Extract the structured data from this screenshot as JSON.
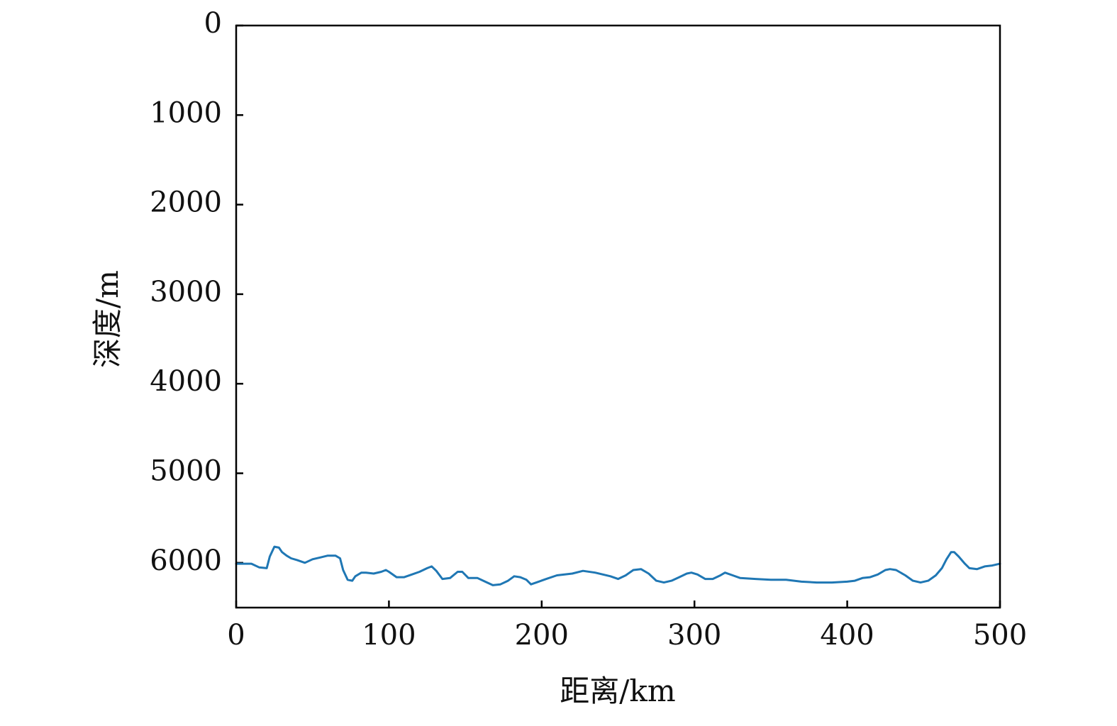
{
  "chart_data": {
    "type": "line",
    "title": "",
    "xlabel": "距离/km",
    "ylabel": "深度/m",
    "xlim": [
      0,
      500
    ],
    "ylim": [
      0,
      6500
    ],
    "y_inverted": true,
    "x_ticks": [
      0,
      100,
      200,
      300,
      400,
      500
    ],
    "x_tick_labels": [
      "0",
      "100",
      "200",
      "300",
      "400",
      "500"
    ],
    "y_ticks": [
      0,
      1000,
      2000,
      3000,
      4000,
      5000,
      6000
    ],
    "y_tick_labels": [
      "0",
      "1000",
      "2000",
      "3000",
      "4000",
      "5000",
      "6000"
    ],
    "grid": false,
    "legend": "none",
    "colors": {
      "series": "#1f77b4",
      "axes": "#000000"
    },
    "series": [
      {
        "x": [
          0,
          5,
          10,
          15,
          20,
          22,
          25,
          28,
          30,
          33,
          36,
          40,
          45,
          50,
          55,
          60,
          65,
          68,
          70,
          73,
          76,
          78,
          82,
          85,
          90,
          95,
          98,
          100,
          105,
          110,
          115,
          120,
          125,
          128,
          131,
          135,
          140,
          145,
          148,
          152,
          158,
          163,
          168,
          173,
          178,
          182,
          186,
          190,
          193,
          198,
          203,
          210,
          220,
          227,
          235,
          245,
          250,
          255,
          260,
          265,
          270,
          275,
          280,
          285,
          290,
          295,
          298,
          302,
          307,
          312,
          317,
          320,
          325,
          330,
          340,
          350,
          360,
          370,
          380,
          390,
          400,
          405,
          410,
          415,
          420,
          425,
          428,
          432,
          438,
          443,
          448,
          453,
          458,
          462,
          465,
          468,
          470,
          473,
          477,
          480,
          485,
          490,
          495,
          500
        ],
        "y": [
          6010,
          6010,
          6010,
          6050,
          6060,
          5930,
          5820,
          5830,
          5880,
          5920,
          5950,
          5970,
          6000,
          5960,
          5940,
          5920,
          5920,
          5950,
          6080,
          6190,
          6200,
          6150,
          6110,
          6110,
          6120,
          6100,
          6080,
          6100,
          6160,
          6160,
          6130,
          6100,
          6060,
          6040,
          6090,
          6180,
          6170,
          6100,
          6100,
          6170,
          6170,
          6210,
          6250,
          6240,
          6200,
          6150,
          6160,
          6190,
          6240,
          6210,
          6180,
          6140,
          6120,
          6090,
          6110,
          6150,
          6180,
          6140,
          6080,
          6070,
          6120,
          6200,
          6220,
          6200,
          6160,
          6120,
          6110,
          6130,
          6180,
          6180,
          6140,
          6110,
          6140,
          6170,
          6180,
          6190,
          6190,
          6210,
          6220,
          6220,
          6210,
          6200,
          6170,
          6160,
          6130,
          6080,
          6070,
          6080,
          6140,
          6200,
          6220,
          6200,
          6140,
          6060,
          5960,
          5880,
          5880,
          5930,
          6010,
          6060,
          6070,
          6040,
          6030,
          6010
        ]
      }
    ]
  }
}
